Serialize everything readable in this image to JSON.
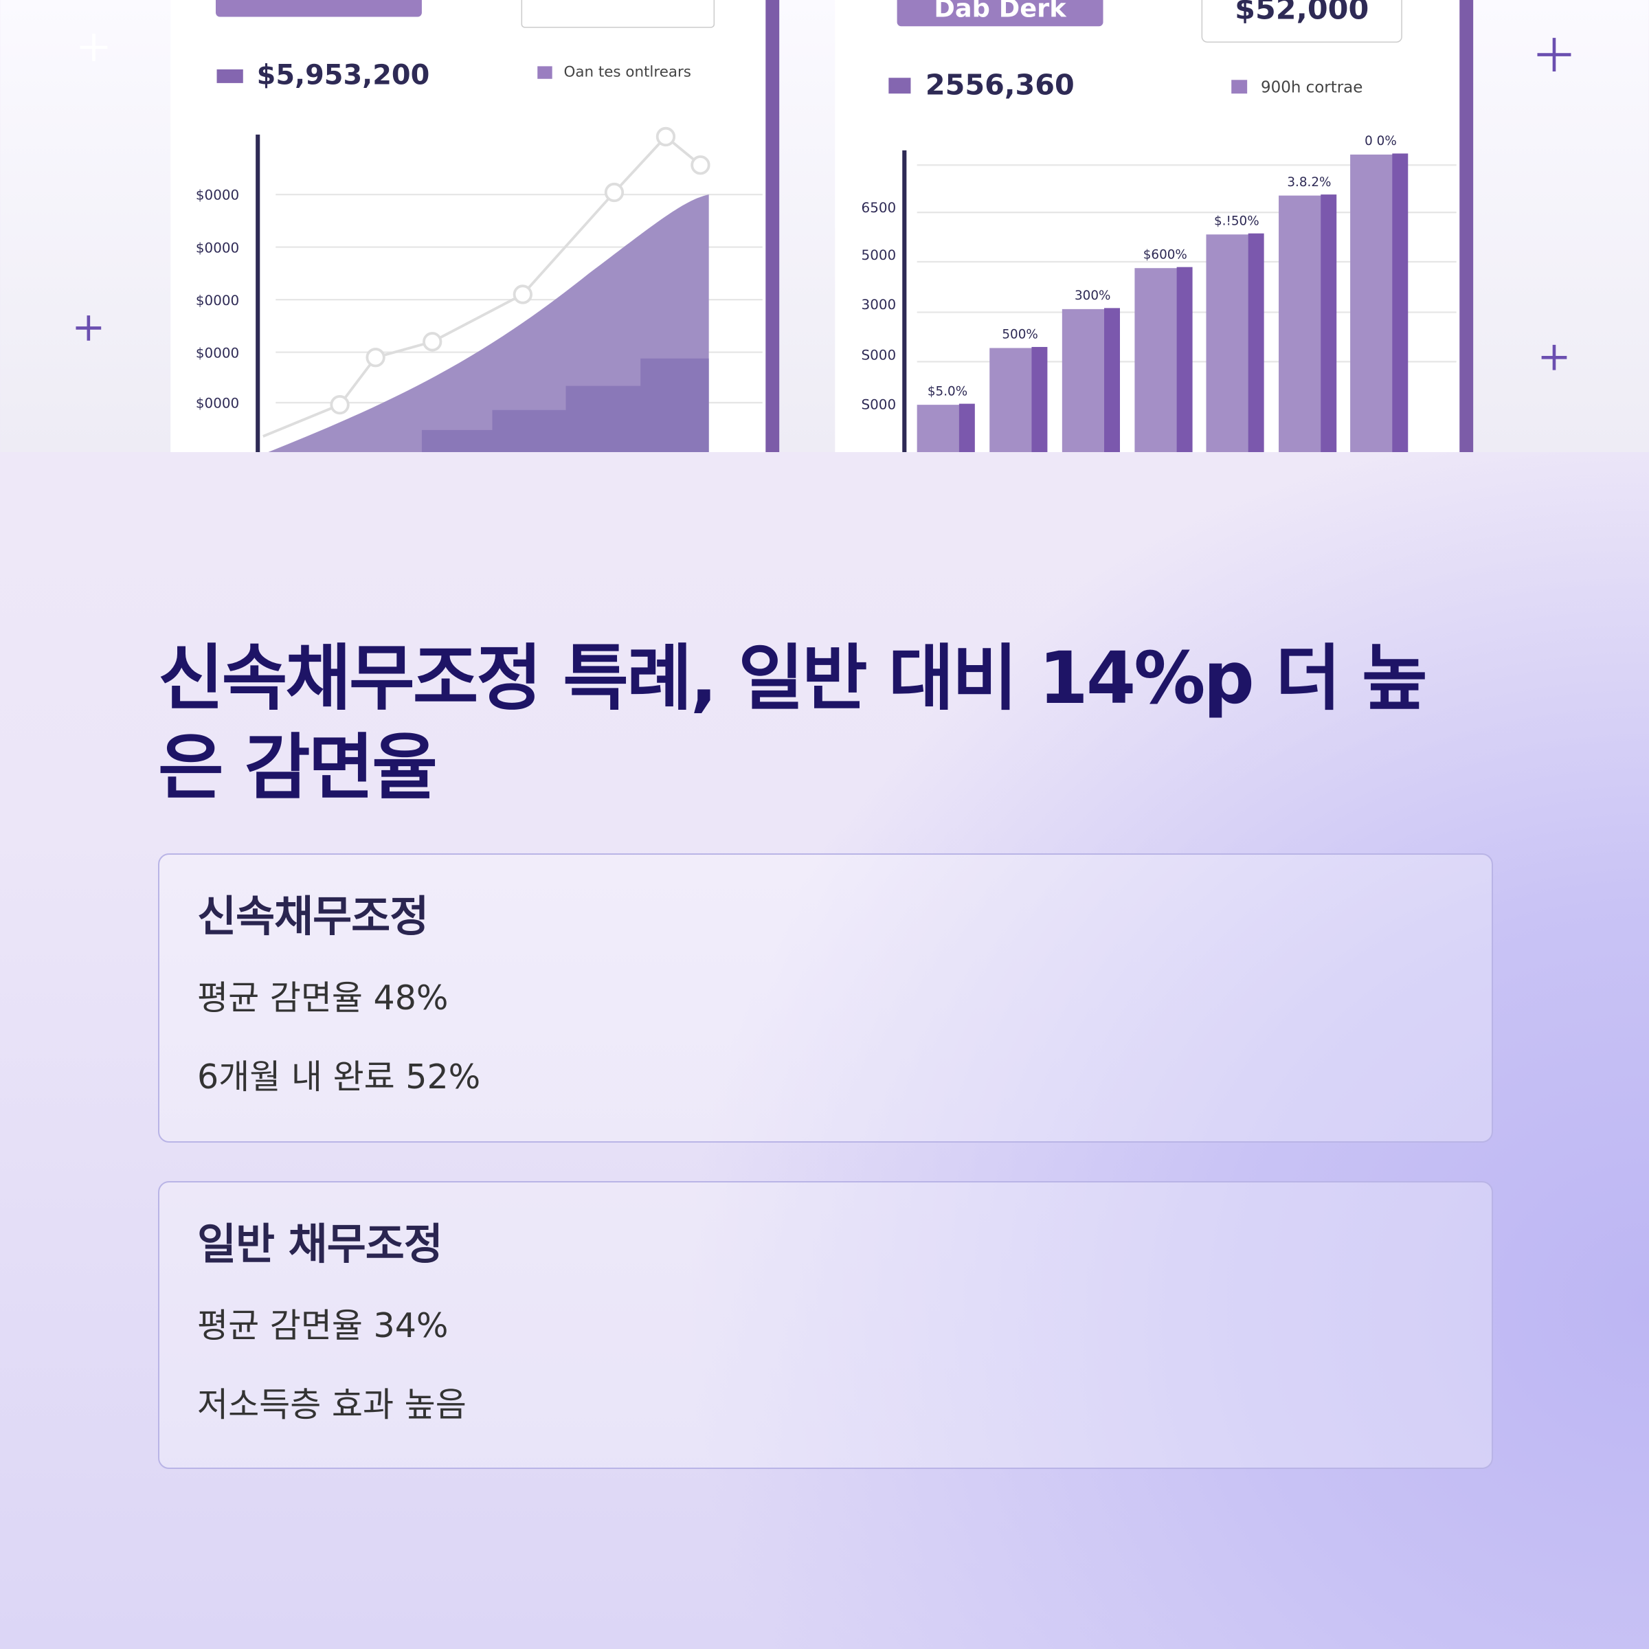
{
  "hero_image": {
    "left_panel": {
      "amount": "$5,953,200",
      "legend": "Oan tes ontlrears",
      "yticks": [
        "$0000",
        "$0000",
        "$0000",
        "$0000",
        "$0000"
      ]
    },
    "right_panel": {
      "badge": "Dab Derk",
      "price": "$52,000",
      "amount": "2556,360",
      "legend": "900h cortrae",
      "yticks": [
        "6500",
        "5000",
        "3000",
        "S000",
        "S000"
      ],
      "bar_labels": [
        "$5.0%",
        "500%",
        "300%",
        "$600%",
        "$.!50%",
        "3.8.2%",
        "0 0%"
      ]
    }
  },
  "section": {
    "title": "신속채무조정 특례, 일반 대비 14%p 더 높은 감면율",
    "cards": [
      {
        "heading": "신속채무조정",
        "items": [
          "평균 감면율 48%",
          "6개월 내 완료 52%"
        ]
      },
      {
        "heading": "일반 채무조정",
        "items": [
          "평균 감면율 34%",
          "저소득층 효과 높음"
        ]
      }
    ]
  }
}
